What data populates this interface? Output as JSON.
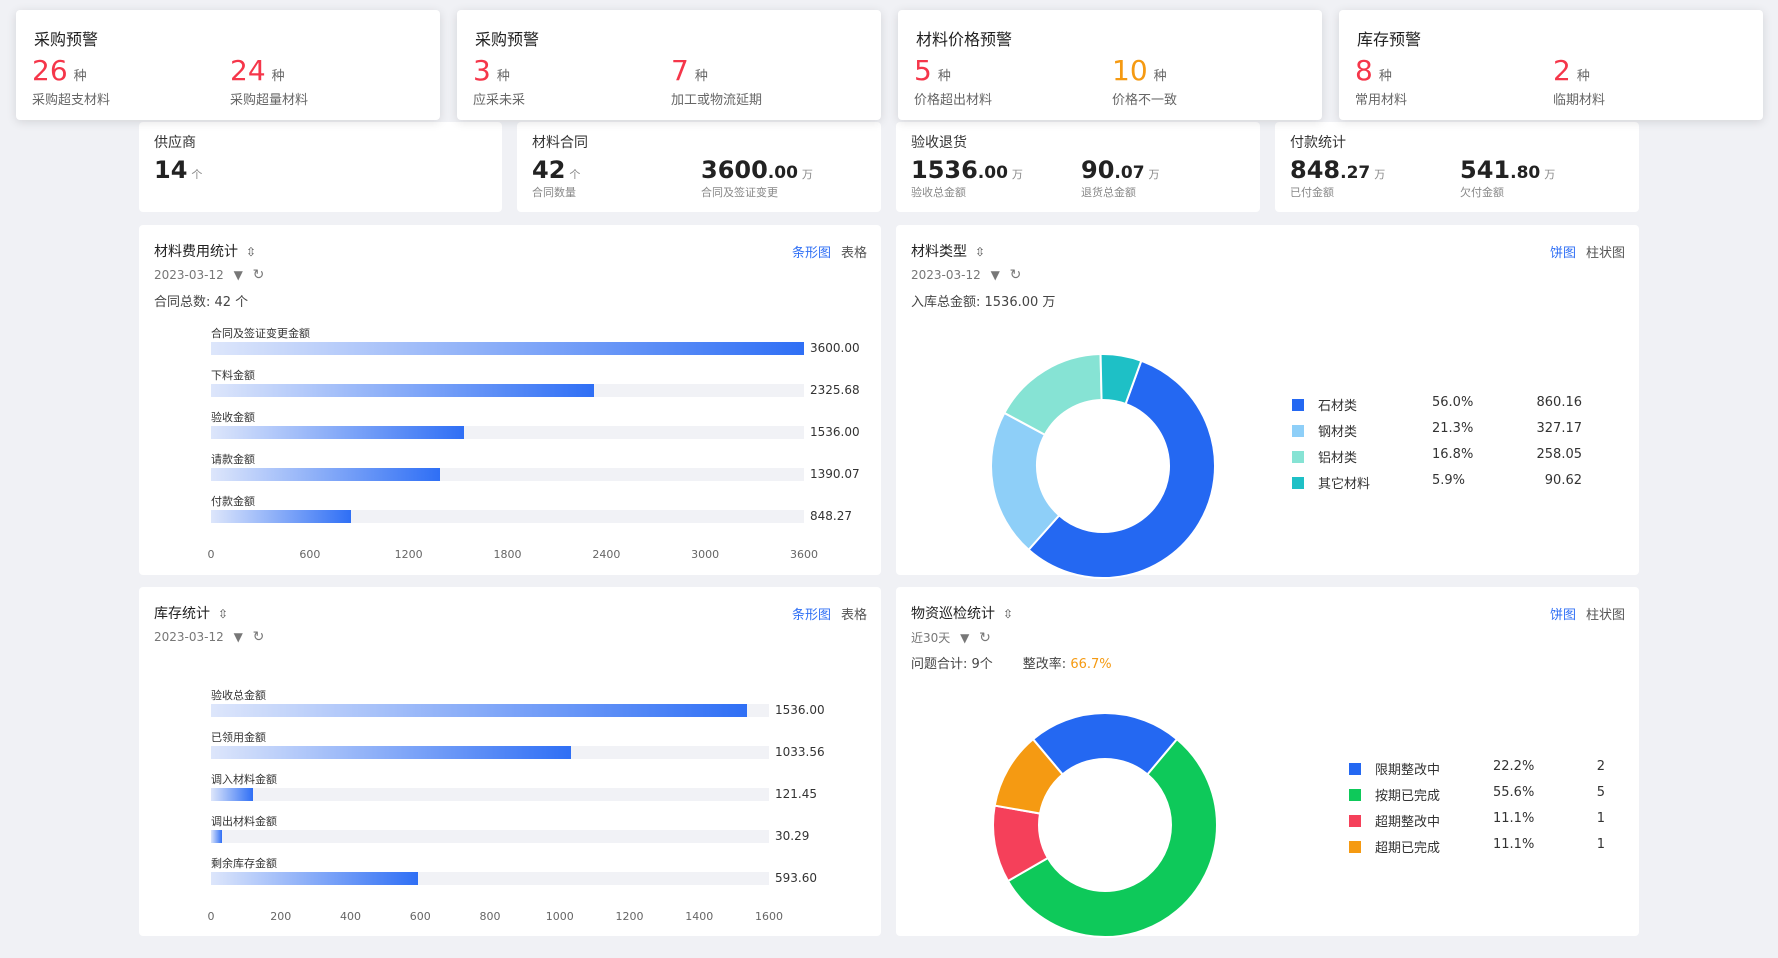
{
  "alerts": [
    {
      "title": "采购预警",
      "items": [
        {
          "num": "26",
          "unit": "种",
          "label": "采购超支材料",
          "color": "red"
        },
        {
          "num": "24",
          "unit": "种",
          "label": "采购超量材料",
          "color": "red"
        }
      ]
    },
    {
      "title": "采购预警",
      "items": [
        {
          "num": "3",
          "unit": "种",
          "label": "应采未采",
          "color": "red"
        },
        {
          "num": "7",
          "unit": "种",
          "label": "加工或物流延期",
          "color": "red"
        }
      ]
    },
    {
      "title": "材料价格预警",
      "items": [
        {
          "num": "5",
          "unit": "种",
          "label": "价格超出材料",
          "color": "red"
        },
        {
          "num": "10",
          "unit": "种",
          "label": "价格不一致",
          "color": "orange"
        }
      ]
    },
    {
      "title": "库存预警",
      "items": [
        {
          "num": "8",
          "unit": "种",
          "label": "常用材料",
          "color": "red"
        },
        {
          "num": "2",
          "unit": "种",
          "label": "临期材料",
          "color": "red"
        }
      ]
    }
  ],
  "stats": {
    "supplier": {
      "title": "供应商",
      "num": "14",
      "unit": "个"
    },
    "contract": {
      "title": "材料合同",
      "count": "42",
      "count_unit": "个",
      "count_label": "合同数量",
      "amount_int": "3600",
      "amount_dec": ".00",
      "amount_unit": "万",
      "amount_label": "合同及签证变更"
    },
    "acceptance": {
      "title": "验收退货",
      "a_int": "1536",
      "a_dec": ".00",
      "a_unit": "万",
      "a_label": "验收总金额",
      "b_int": "90",
      "b_dec": ".07",
      "b_unit": "万",
      "b_label": "退货总金额"
    },
    "payment": {
      "title": "付款统计",
      "a_int": "848",
      "a_dec": ".27",
      "a_unit": "万",
      "a_label": "已付金额",
      "b_int": "541",
      "b_dec": ".80",
      "b_unit": "万",
      "b_label": "欠付金额"
    }
  },
  "cost_panel": {
    "title": "材料费用统计",
    "date": "2023-03-12",
    "info": "合同总数:  42 个",
    "tabs": {
      "bar": "条形图",
      "table": "表格"
    },
    "bars": [
      {
        "label": "合同及签证变更金额",
        "value": 3600.0,
        "value_text": "3600.00"
      },
      {
        "label": "下料金额",
        "value": 2325.68,
        "value_text": "2325.68"
      },
      {
        "label": "验收金额",
        "value": 1536.0,
        "value_text": "1536.00"
      },
      {
        "label": "请款金额",
        "value": 1390.07,
        "value_text": "1390.07"
      },
      {
        "label": "付款金额",
        "value": 848.27,
        "value_text": "848.27"
      }
    ],
    "axis_max": 3600,
    "ticks": [
      "0",
      "600",
      "1200",
      "1800",
      "2400",
      "3000",
      "3600"
    ]
  },
  "type_panel": {
    "title": "材料类型",
    "date": "2023-03-12",
    "info": "入库总金额:  1536.00 万",
    "tabs": {
      "pie": "饼图",
      "bar": "柱状图"
    },
    "slices": [
      {
        "name": "石材类",
        "pct": "56.0%",
        "value_text": "860.16",
        "value": 860.16,
        "color": "#2468f2"
      },
      {
        "name": "钢材类",
        "pct": "21.3%",
        "value_text": "327.17",
        "value": 327.17,
        "color": "#8ecff8"
      },
      {
        "name": "铝材类",
        "pct": "16.8%",
        "value_text": "258.05",
        "value": 258.05,
        "color": "#86e3d4"
      },
      {
        "name": "其它材料",
        "pct": "5.9%",
        "value_text": "90.62",
        "value": 90.62,
        "color": "#1ec0c6"
      }
    ]
  },
  "stock_panel": {
    "title": "库存统计",
    "date": "2023-03-12",
    "tabs": {
      "bar": "条形图",
      "table": "表格"
    },
    "bars": [
      {
        "label": "验收总金额",
        "value": 1536.0,
        "value_text": "1536.00"
      },
      {
        "label": "已领用金额",
        "value": 1033.56,
        "value_text": "1033.56"
      },
      {
        "label": "调入材料金额",
        "value": 121.45,
        "value_text": "121.45"
      },
      {
        "label": "调出材料金额",
        "value": 30.29,
        "value_text": "30.29"
      },
      {
        "label": "剩余库存金额",
        "value": 593.6,
        "value_text": "593.60"
      }
    ],
    "axis_max": 1600,
    "ticks": [
      "0",
      "200",
      "400",
      "600",
      "800",
      "1000",
      "1200",
      "1400",
      "1600"
    ]
  },
  "inspect_panel": {
    "title": "物资巡检统计",
    "date": "近30天",
    "info_label": "问题合计:  9个",
    "rate_label": "整改率:",
    "rate_value": "66.7%",
    "tabs": {
      "pie": "饼图",
      "bar": "柱状图"
    },
    "slices": [
      {
        "name": "限期整改中",
        "pct": "22.2%",
        "value_text": "2",
        "value": 2,
        "color": "#2468f2"
      },
      {
        "name": "按期已完成",
        "pct": "55.6%",
        "value_text": "5",
        "value": 5,
        "color": "#0ec95a"
      },
      {
        "name": "超期整改中",
        "pct": "11.1%",
        "value_text": "1",
        "value": 1,
        "color": "#f5405a"
      },
      {
        "name": "超期已完成",
        "pct": "11.1%",
        "value_text": "1",
        "value": 1,
        "color": "#f59a12"
      }
    ]
  }
}
